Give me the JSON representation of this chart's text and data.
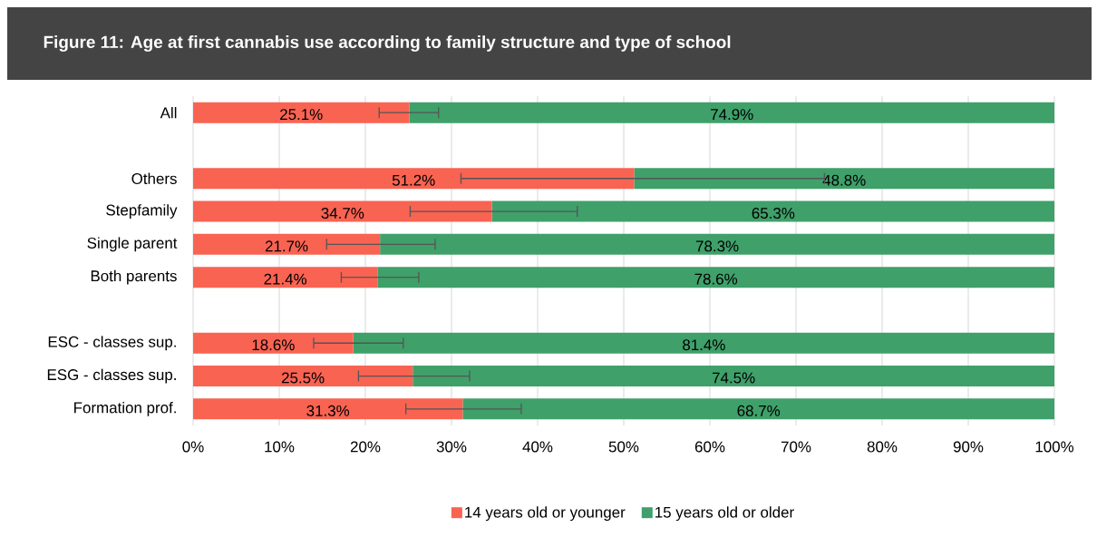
{
  "chart_data": {
    "type": "bar",
    "orientation": "horizontal",
    "stacked": true,
    "title": "Figure 11: Age at first cannabis use according to family structure and type of school",
    "categories": [
      "All",
      null,
      "Others",
      "Stepfamily",
      "Single parent",
      "Both parents",
      null,
      "ESC - classes sup.",
      "ESG - classes sup.",
      "Formation prof."
    ],
    "series": [
      {
        "name": "14 years old or younger",
        "color": "#f96352",
        "values": [
          25.1,
          null,
          51.2,
          34.7,
          21.7,
          21.4,
          null,
          18.6,
          25.5,
          31.3
        ],
        "value_labels": [
          "25.1%",
          null,
          "51.2%",
          "34.7%",
          "21.7%",
          "21.4%",
          null,
          "18.6%",
          "25.5%",
          "31.3%"
        ],
        "errors": [
          [
            21.6,
            28.5
          ],
          null,
          [
            31.1,
            73.3
          ],
          [
            25.2,
            44.6
          ],
          [
            15.5,
            28.1
          ],
          [
            17.2,
            26.2
          ],
          null,
          [
            14.0,
            24.4
          ],
          [
            19.2,
            32.1
          ],
          [
            24.7,
            38.1
          ]
        ]
      },
      {
        "name": "15 years old or older",
        "color": "#3fa06a",
        "values": [
          74.9,
          null,
          48.8,
          65.3,
          78.3,
          78.6,
          null,
          81.4,
          74.5,
          68.7
        ],
        "value_labels": [
          "74.9%",
          null,
          "48.8%",
          "65.3%",
          "78.3%",
          "78.6%",
          null,
          "81.4%",
          "74.5%",
          "68.7%"
        ]
      }
    ],
    "xlim": [
      0,
      100
    ],
    "xticks": [
      {
        "value": 0,
        "label": "0%"
      },
      {
        "value": 10,
        "label": "10%"
      },
      {
        "value": 20,
        "label": "20%"
      },
      {
        "value": 30,
        "label": "30%"
      },
      {
        "value": 40,
        "label": "40%"
      },
      {
        "value": 50,
        "label": "50%"
      },
      {
        "value": 60,
        "label": "60%"
      },
      {
        "value": 70,
        "label": "70%"
      },
      {
        "value": 80,
        "label": "80%"
      },
      {
        "value": 90,
        "label": "90%"
      },
      {
        "value": 100,
        "label": "100%"
      }
    ],
    "grid": "x",
    "legend": "bottom"
  }
}
